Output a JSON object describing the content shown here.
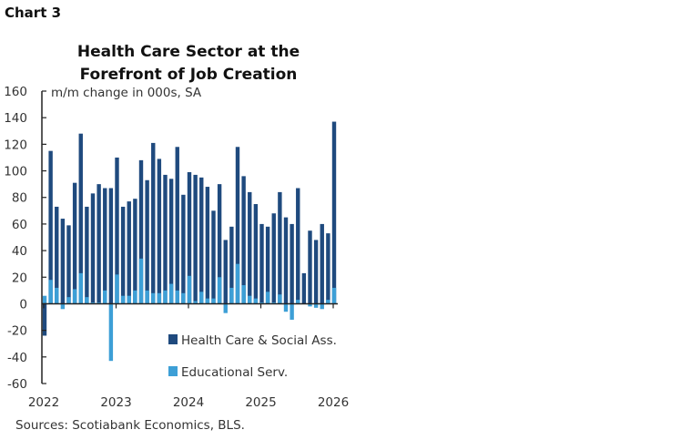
{
  "header": {
    "chart_label": "Chart 3"
  },
  "chart_data": {
    "type": "bar",
    "title": "Health Care Sector at the Forefront of Job Creation",
    "title_lines": [
      "Health Care Sector at the",
      "Forefront of Job Creation"
    ],
    "ylabel": "m/m change in 000s, SA",
    "ylim": [
      -60,
      160
    ],
    "yticks": [
      160,
      140,
      120,
      100,
      80,
      60,
      40,
      20,
      0,
      -20,
      -40,
      -60
    ],
    "xticks": [
      "2022",
      "2023",
      "2024",
      "2025",
      "2026"
    ],
    "x_start": "2022-01",
    "x_end": "2026-01",
    "frequency": "monthly",
    "grid": false,
    "legend_placement": "bottom-right inside",
    "source": "Sources: Scotiabank Economics, BLS.",
    "series": [
      {
        "name": "Health Care & Social Ass.",
        "color": "#1f4a7e",
        "values": [
          -24,
          115,
          73,
          64,
          59,
          91,
          128,
          73,
          83,
          90,
          87,
          87,
          110,
          73,
          77,
          79,
          108,
          93,
          121,
          109,
          97,
          94,
          118,
          82,
          99,
          97,
          95,
          88,
          70,
          90,
          48,
          58,
          118,
          96,
          84,
          75,
          60,
          58,
          68,
          84,
          65,
          60,
          87,
          23,
          55,
          48,
          60,
          53,
          137
        ]
      },
      {
        "name": "Educational Serv.",
        "color": "#3d9fd6",
        "values": [
          6,
          18,
          12,
          -4,
          5,
          11,
          23,
          5,
          1,
          1,
          10,
          -43,
          22,
          6,
          6,
          10,
          34,
          10,
          8,
          8,
          10,
          15,
          10,
          8,
          21,
          2,
          9,
          4,
          4,
          20,
          -7,
          12,
          30,
          14,
          6,
          4,
          1,
          9,
          1,
          7,
          -6,
          -12,
          3,
          0,
          -2,
          -3,
          -4,
          3,
          12
        ]
      }
    ]
  }
}
